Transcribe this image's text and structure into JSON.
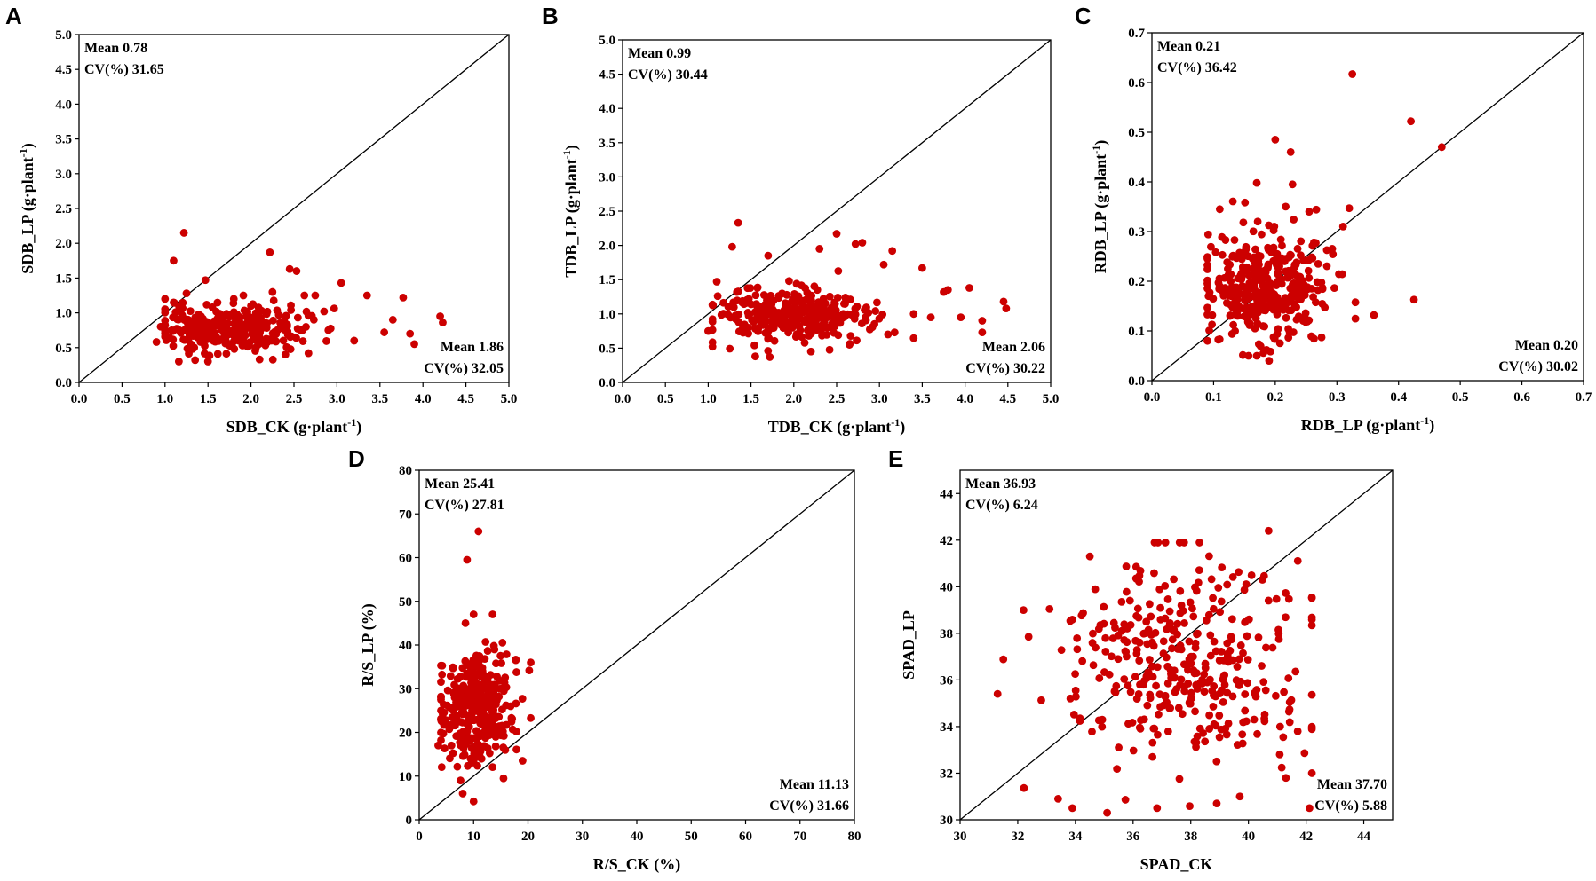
{
  "figure": {
    "marker_color": "#cc0000",
    "axis_color": "#000000"
  },
  "chart_data": [
    {
      "panel": "A",
      "type": "scatter",
      "xlabel": "SDB_CK (g·plant",
      "ylabel": "SDB_LP (g·plant",
      "label_sup": "-1",
      "label_close": ")",
      "xlim": [
        0,
        5
      ],
      "ylim": [
        0,
        5
      ],
      "xticks": [
        "0.0",
        "0.5",
        "1.0",
        "1.5",
        "2.0",
        "2.5",
        "3.0",
        "3.5",
        "4.0",
        "4.5",
        "5.0"
      ],
      "yticks": [
        "0.0",
        "0.5",
        "1.0",
        "1.5",
        "2.0",
        "2.5",
        "3.0",
        "3.5",
        "4.0",
        "4.5",
        "5.0"
      ],
      "reference_line": "y = x",
      "stats_y": {
        "mean": "Mean 0.78",
        "cv": "CV(%) 31.65"
      },
      "stats_x": {
        "mean": "Mean 1.86",
        "cv": "CV(%) 32.05"
      },
      "points": [
        [
          1.22,
          2.15
        ],
        [
          1.1,
          1.75
        ],
        [
          2.22,
          1.87
        ],
        [
          1.47,
          1.47
        ],
        [
          2.45,
          1.63
        ],
        [
          2.53,
          1.6
        ],
        [
          3.05,
          1.43
        ],
        [
          1.0,
          1.2
        ],
        [
          1.1,
          1.15
        ],
        [
          3.35,
          1.25
        ],
        [
          3.77,
          1.22
        ],
        [
          4.2,
          0.95
        ],
        [
          4.23,
          0.86
        ],
        [
          3.85,
          0.7
        ],
        [
          3.55,
          0.72
        ],
        [
          3.65,
          0.9
        ],
        [
          2.85,
          1.02
        ],
        [
          2.9,
          0.75
        ],
        [
          3.2,
          0.6
        ],
        [
          3.9,
          0.55
        ],
        [
          1.25,
          1.28
        ],
        [
          1.8,
          1.2
        ],
        [
          2.0,
          1.1
        ],
        [
          2.25,
          1.3
        ],
        [
          0.9,
          0.58
        ],
        [
          0.95,
          0.8
        ],
        [
          1.5,
          0.3
        ],
        [
          1.35,
          0.32
        ],
        [
          2.1,
          0.33
        ],
        [
          2.4,
          0.4
        ]
      ],
      "cluster": {
        "n": 300,
        "cx": 1.75,
        "sx": 0.42,
        "cy": 0.76,
        "sy": 0.17,
        "xmin": 1.0,
        "xmax": 3.3,
        "ymin": 0.3,
        "ymax": 1.25,
        "seed": 11
      }
    },
    {
      "panel": "B",
      "type": "scatter",
      "xlabel": "TDB_CK (g·plant",
      "ylabel": "TDB_LP (g·plant",
      "label_sup": "-1",
      "label_close": ")",
      "xlim": [
        0,
        5
      ],
      "ylim": [
        0,
        5
      ],
      "xticks": [
        "0.0",
        "0.5",
        "1.0",
        "1.5",
        "2.0",
        "2.5",
        "3.0",
        "3.5",
        "4.0",
        "4.5",
        "5.0"
      ],
      "yticks": [
        "0.0",
        "0.5",
        "1.0",
        "1.5",
        "2.0",
        "2.5",
        "3.0",
        "3.5",
        "4.0",
        "4.5",
        "5.0"
      ],
      "reference_line": "y = x",
      "stats_y": {
        "mean": "Mean 0.99",
        "cv": "CV(%) 30.44"
      },
      "stats_x": {
        "mean": "Mean 2.06",
        "cv": "CV(%) 30.22"
      },
      "points": [
        [
          1.35,
          2.33
        ],
        [
          1.28,
          1.98
        ],
        [
          2.5,
          2.17
        ],
        [
          2.8,
          2.04
        ],
        [
          2.72,
          2.02
        ],
        [
          2.3,
          1.95
        ],
        [
          3.15,
          1.92
        ],
        [
          1.7,
          1.85
        ],
        [
          3.05,
          1.72
        ],
        [
          3.5,
          1.67
        ],
        [
          3.8,
          1.35
        ],
        [
          3.75,
          1.32
        ],
        [
          4.45,
          1.18
        ],
        [
          4.48,
          1.08
        ],
        [
          4.2,
          0.9
        ],
        [
          4.2,
          0.73
        ],
        [
          4.05,
          1.38
        ],
        [
          3.4,
          1.0
        ],
        [
          3.6,
          0.95
        ],
        [
          3.95,
          0.95
        ],
        [
          1.1,
          1.47
        ],
        [
          1.0,
          0.75
        ],
        [
          1.55,
          0.38
        ],
        [
          1.72,
          0.37
        ],
        [
          2.2,
          0.45
        ],
        [
          2.65,
          0.55
        ],
        [
          3.1,
          0.7
        ]
      ],
      "cluster": {
        "n": 300,
        "cx": 1.95,
        "sx": 0.45,
        "cy": 0.97,
        "sy": 0.2,
        "xmin": 1.05,
        "xmax": 3.4,
        "ymin": 0.45,
        "ymax": 1.65,
        "seed": 23
      }
    },
    {
      "panel": "C",
      "type": "scatter",
      "xlabel": "RDB_LP (g·plant",
      "ylabel": "RDB_LP (g·plant",
      "label_sup": "-1",
      "label_close": ")",
      "xlim": [
        0,
        0.7
      ],
      "ylim": [
        0,
        0.7
      ],
      "xticks": [
        "0.0",
        "0.1",
        "0.2",
        "0.3",
        "0.4",
        "0.5",
        "0.6",
        "0.7"
      ],
      "yticks": [
        "0.0",
        "0.1",
        "0.2",
        "0.3",
        "0.4",
        "0.5",
        "0.6",
        "0.7"
      ],
      "reference_line": "y = x",
      "stats_y": {
        "mean": "Mean 0.21",
        "cv": "CV(%) 36.42"
      },
      "stats_x": {
        "mean": "Mean 0.20",
        "cv": "CV(%) 30.02"
      },
      "points": [
        [
          0.325,
          0.617
        ],
        [
          0.42,
          0.522
        ],
        [
          0.47,
          0.47
        ],
        [
          0.2,
          0.485
        ],
        [
          0.225,
          0.46
        ],
        [
          0.17,
          0.398
        ],
        [
          0.228,
          0.395
        ],
        [
          0.11,
          0.345
        ],
        [
          0.09,
          0.08
        ],
        [
          0.36,
          0.132
        ],
        [
          0.425,
          0.163
        ],
        [
          0.32,
          0.347
        ],
        [
          0.31,
          0.31
        ],
        [
          0.255,
          0.34
        ],
        [
          0.19,
          0.04
        ],
        [
          0.17,
          0.05
        ]
      ],
      "cluster": {
        "n": 360,
        "cx": 0.19,
        "sx": 0.05,
        "cy": 0.19,
        "sy": 0.055,
        "xmin": 0.09,
        "xmax": 0.33,
        "ymin": 0.05,
        "ymax": 0.37,
        "seed": 37
      }
    },
    {
      "panel": "D",
      "type": "scatter",
      "xlabel": "R/S_CK (%)",
      "ylabel": "R/S_LP (%)",
      "label_sup": "",
      "label_close": "",
      "xlim": [
        0,
        80
      ],
      "ylim": [
        0,
        80
      ],
      "xticks": [
        "0",
        "10",
        "20",
        "30",
        "40",
        "50",
        "60",
        "70",
        "80"
      ],
      "yticks": [
        "0",
        "10",
        "20",
        "30",
        "40",
        "50",
        "60",
        "70",
        "80"
      ],
      "reference_line": "y = x",
      "stats_y": {
        "mean": "Mean 25.41",
        "cv": "CV(%) 27.81"
      },
      "stats_x": {
        "mean": "Mean 11.13",
        "cv": "CV(%) 31.66"
      },
      "points": [
        [
          10.9,
          66
        ],
        [
          8.8,
          59.5
        ],
        [
          10.0,
          47
        ],
        [
          13.5,
          47
        ],
        [
          8.5,
          45
        ],
        [
          8.0,
          6
        ],
        [
          10.0,
          4.2
        ],
        [
          19.0,
          13.5
        ],
        [
          20.5,
          36
        ],
        [
          4.0,
          25
        ],
        [
          3.5,
          17
        ],
        [
          15.5,
          9.5
        ]
      ],
      "cluster": {
        "n": 340,
        "cx": 10.5,
        "sx": 3.2,
        "cy": 25.5,
        "sy": 6.2,
        "xmin": 4.0,
        "xmax": 20.5,
        "ymin": 9,
        "ymax": 42,
        "seed": 53
      }
    },
    {
      "panel": "E",
      "type": "scatter",
      "xlabel": "SPAD_CK",
      "ylabel": "SPAD_LP",
      "label_sup": "",
      "label_close": "",
      "xlim": [
        30,
        45
      ],
      "ylim": [
        30,
        45
      ],
      "xticks": [
        "30",
        "32",
        "34",
        "36",
        "38",
        "40",
        "42",
        "44"
      ],
      "yticks": [
        "30",
        "32",
        "34",
        "36",
        "38",
        "40",
        "42",
        "44"
      ],
      "reference_line": "y = x",
      "stats_y": {
        "mean": "Mean 36.93",
        "cv": "CV(%) 6.24"
      },
      "stats_x": {
        "mean": "Mean 37.70",
        "cv": "CV(%) 5.88"
      },
      "points": [
        [
          31.3,
          35.4
        ],
        [
          33.4,
          30.9
        ],
        [
          35.1,
          30.3
        ],
        [
          38.9,
          30.7
        ],
        [
          39.7,
          31.0
        ],
        [
          41.3,
          31.8
        ],
        [
          40.7,
          42.4
        ],
        [
          35.5,
          33.1
        ],
        [
          32.2,
          39.0
        ],
        [
          34.5,
          41.3
        ]
      ],
      "cluster": {
        "n": 360,
        "cx": 37.7,
        "sx": 2.2,
        "cy": 36.9,
        "sy": 2.3,
        "xmin": 31.5,
        "xmax": 42.2,
        "ymin": 30.5,
        "ymax": 41.9,
        "seed": 71
      }
    }
  ]
}
